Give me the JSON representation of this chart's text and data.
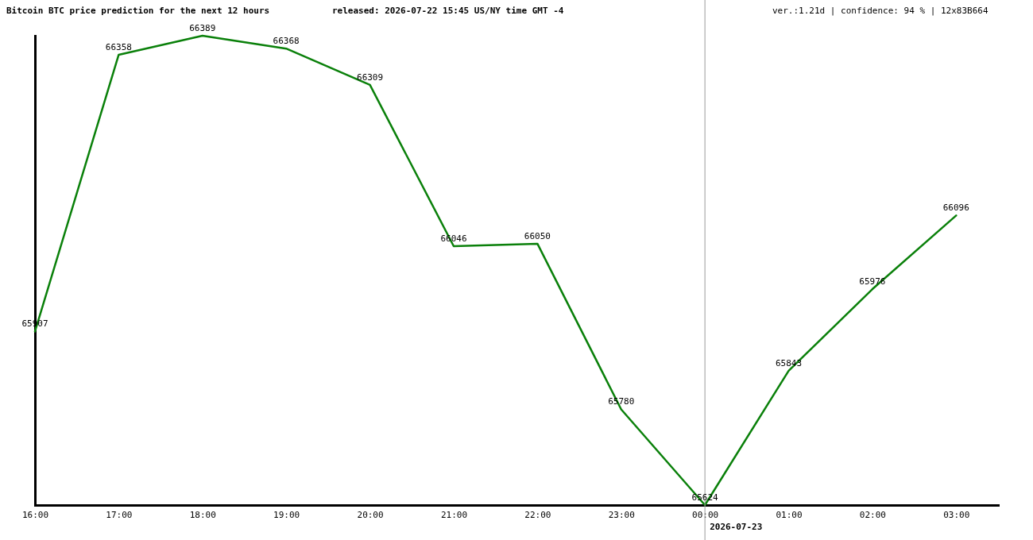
{
  "chart_data": {
    "type": "line",
    "title": "Bitcoin BTC price prediction for the next 12 hours",
    "subtitle": "released: 2026-07-22 15:45 US/NY time GMT -4",
    "annotations": [
      "ver.:1.21d | confidence: 94 % | 12x83B664"
    ],
    "x": [
      "2026-07-22T16:00",
      "2026-07-22T17:00",
      "2026-07-22T18:00",
      "2026-07-22T19:00",
      "2026-07-22T20:00",
      "2026-07-22T21:00",
      "2026-07-22T22:00",
      "2026-07-22T23:00",
      "2026-07-23T00:00",
      "2026-07-23T01:00",
      "2026-07-23T02:00",
      "2026-07-23T03:00"
    ],
    "values": [
      65907,
      66358,
      66389,
      66368,
      66309,
      66046,
      66050,
      65780,
      65624,
      65843,
      65976,
      66096
    ],
    "color": "#0a800a",
    "xlim": [
      "2026-07-22T16:00",
      "2026-07-23T03:30"
    ],
    "xticks": [
      {
        "value": "2026-07-22T16:00",
        "label": "16:00"
      },
      {
        "value": "2026-07-22T17:00",
        "label": "17:00"
      },
      {
        "value": "2026-07-22T18:00",
        "label": "18:00"
      },
      {
        "value": "2026-07-22T19:00",
        "label": "19:00"
      },
      {
        "value": "2026-07-22T20:00",
        "label": "20:00"
      },
      {
        "value": "2026-07-22T21:00",
        "label": "21:00"
      },
      {
        "value": "2026-07-22T22:00",
        "label": "22:00"
      },
      {
        "value": "2026-07-22T23:00",
        "label": "23:00"
      },
      {
        "value": "2026-07-23T00:00",
        "label": "00:00"
      },
      {
        "value": "2026-07-23T01:00",
        "label": "01:00"
      },
      {
        "value": "2026-07-23T02:00",
        "label": "02:00"
      },
      {
        "value": "2026-07-23T03:00",
        "label": "03:00"
      }
    ],
    "ylim": [
      65624,
      66389
    ],
    "tick_labels": "x",
    "data_labels": true,
    "ref_lines": [
      {
        "axis": "x",
        "value": "2026-07-23T00:00",
        "label": "2026-07-23",
        "color": "#999999"
      }
    ]
  }
}
